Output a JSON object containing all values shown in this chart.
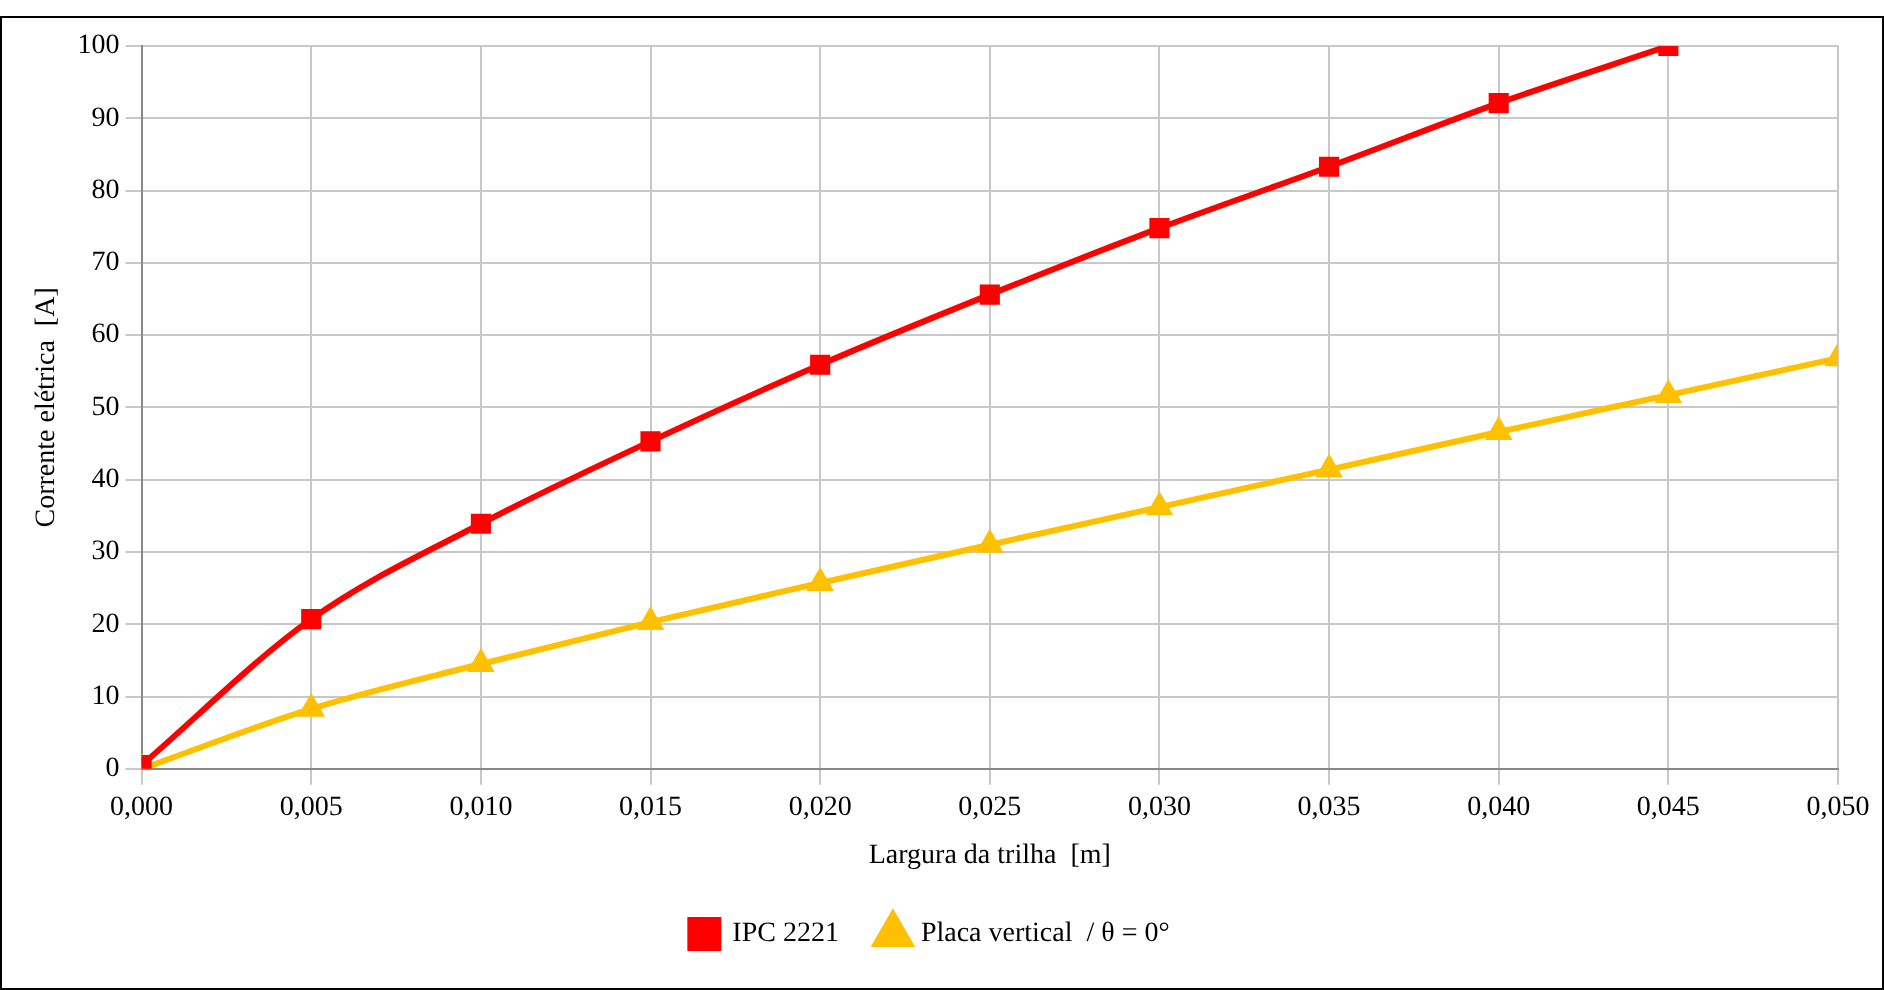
{
  "chart_data": {
    "type": "line",
    "xlabel": "Largura da trilha  [m]",
    "ylabel": "Corrente elétrica  [A]",
    "xlim": [
      0,
      0.05
    ],
    "xticks": [
      {
        "value": 0,
        "label": "0,000"
      },
      {
        "value": 0.005,
        "label": "0,005"
      },
      {
        "value": 0.01,
        "label": "0,010"
      },
      {
        "value": 0.015,
        "label": "0,015"
      },
      {
        "value": 0.02,
        "label": "0,020"
      },
      {
        "value": 0.025,
        "label": "0,025"
      },
      {
        "value": 0.03,
        "label": "0,030"
      },
      {
        "value": 0.035,
        "label": "0,035"
      },
      {
        "value": 0.04,
        "label": "0,040"
      },
      {
        "value": 0.045,
        "label": "0,045"
      },
      {
        "value": 0.05,
        "label": "0,050"
      }
    ],
    "ylim": [
      0,
      100
    ],
    "yticks": [
      0,
      10,
      20,
      30,
      40,
      50,
      60,
      70,
      80,
      90,
      100
    ],
    "grid": true,
    "legend": "bottom",
    "line_style": "solid",
    "series": [
      {
        "name": "IPC 2221",
        "color": "#ff0000",
        "marker": "square",
        "x": [
          0,
          0.005,
          0.01,
          0.015,
          0.02,
          0.025,
          0.03,
          0.035,
          0.04,
          0.045
        ],
        "values": [
          0.5,
          20.7,
          33.9,
          45.3,
          55.9,
          65.6,
          74.8,
          83.3,
          92.1,
          100
        ]
      },
      {
        "name": "Placa vertical  / θ = 0°",
        "color": "#ffc000",
        "marker": "triangle",
        "x": [
          0,
          0.005,
          0.01,
          0.015,
          0.02,
          0.025,
          0.03,
          0.035,
          0.04,
          0.045,
          0.05
        ],
        "values": [
          0,
          8.3,
          14.5,
          20.3,
          25.7,
          31.0,
          36.2,
          41.4,
          46.6,
          51.7,
          56.8
        ]
      }
    ]
  }
}
